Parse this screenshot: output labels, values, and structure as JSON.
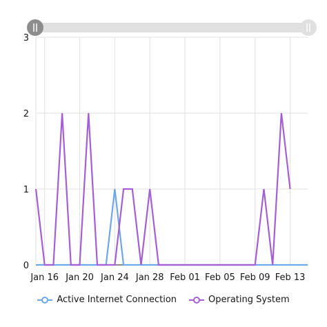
{
  "chart_data": {
    "type": "line",
    "x_start": "2021-01-15",
    "x_end": "2021-02-15",
    "x_ticks": [
      "Jan 16",
      "Jan 20",
      "Jan 24",
      "Jan 28",
      "Feb 01",
      "Feb 05",
      "Feb 09",
      "Feb 13"
    ],
    "ylim": [
      0,
      3
    ],
    "y_ticks": [
      0,
      1,
      2,
      3
    ],
    "grid": true,
    "legend_position": "bottom",
    "series": [
      {
        "name": "Active Internet Connection",
        "color": "#6ea6e8",
        "x": [
          "2021-01-15",
          "2021-01-16",
          "2021-01-17",
          "2021-01-18",
          "2021-01-19",
          "2021-01-20",
          "2021-01-21",
          "2021-01-22",
          "2021-01-23",
          "2021-01-24",
          "2021-01-25",
          "2021-01-26",
          "2021-01-27",
          "2021-01-28",
          "2021-01-29",
          "2021-01-30",
          "2021-01-31",
          "2021-02-01",
          "2021-02-02",
          "2021-02-03",
          "2021-02-04",
          "2021-02-05",
          "2021-02-06",
          "2021-02-07",
          "2021-02-08",
          "2021-02-09",
          "2021-02-10",
          "2021-02-11",
          "2021-02-12",
          "2021-02-13",
          "2021-02-14",
          "2021-02-15"
        ],
        "values": [
          0,
          0,
          0,
          0,
          0,
          0,
          0,
          0,
          0,
          1,
          0,
          0,
          0,
          0,
          0,
          0,
          0,
          0,
          0,
          0,
          0,
          0,
          0,
          0,
          0,
          0,
          0,
          0,
          0,
          0,
          0,
          0
        ]
      },
      {
        "name": "Operating System",
        "color": "#a45fd6",
        "x": [
          "2021-01-15",
          "2021-01-16",
          "2021-01-17",
          "2021-01-18",
          "2021-01-19",
          "2021-01-20",
          "2021-01-21",
          "2021-01-22",
          "2021-01-23",
          "2021-01-24",
          "2021-01-25",
          "2021-01-26",
          "2021-01-27",
          "2021-01-28",
          "2021-01-29",
          "2021-01-30",
          "2021-01-31",
          "2021-02-01",
          "2021-02-02",
          "2021-02-03",
          "2021-02-04",
          "2021-02-05",
          "2021-02-06",
          "2021-02-07",
          "2021-02-08",
          "2021-02-09",
          "2021-02-10",
          "2021-02-11",
          "2021-02-12",
          "2021-02-13",
          "2021-02-14",
          "2021-02-15"
        ],
        "values": [
          1,
          0,
          0,
          2,
          0,
          0,
          2,
          0,
          0,
          0,
          1,
          1,
          0,
          1,
          0,
          0,
          0,
          0,
          0,
          0,
          0,
          0,
          0,
          0,
          0,
          0,
          1,
          0,
          2,
          1,
          null,
          null
        ]
      }
    ]
  },
  "slider": {
    "start": "2021-01-15",
    "end": "2021-02-15"
  }
}
